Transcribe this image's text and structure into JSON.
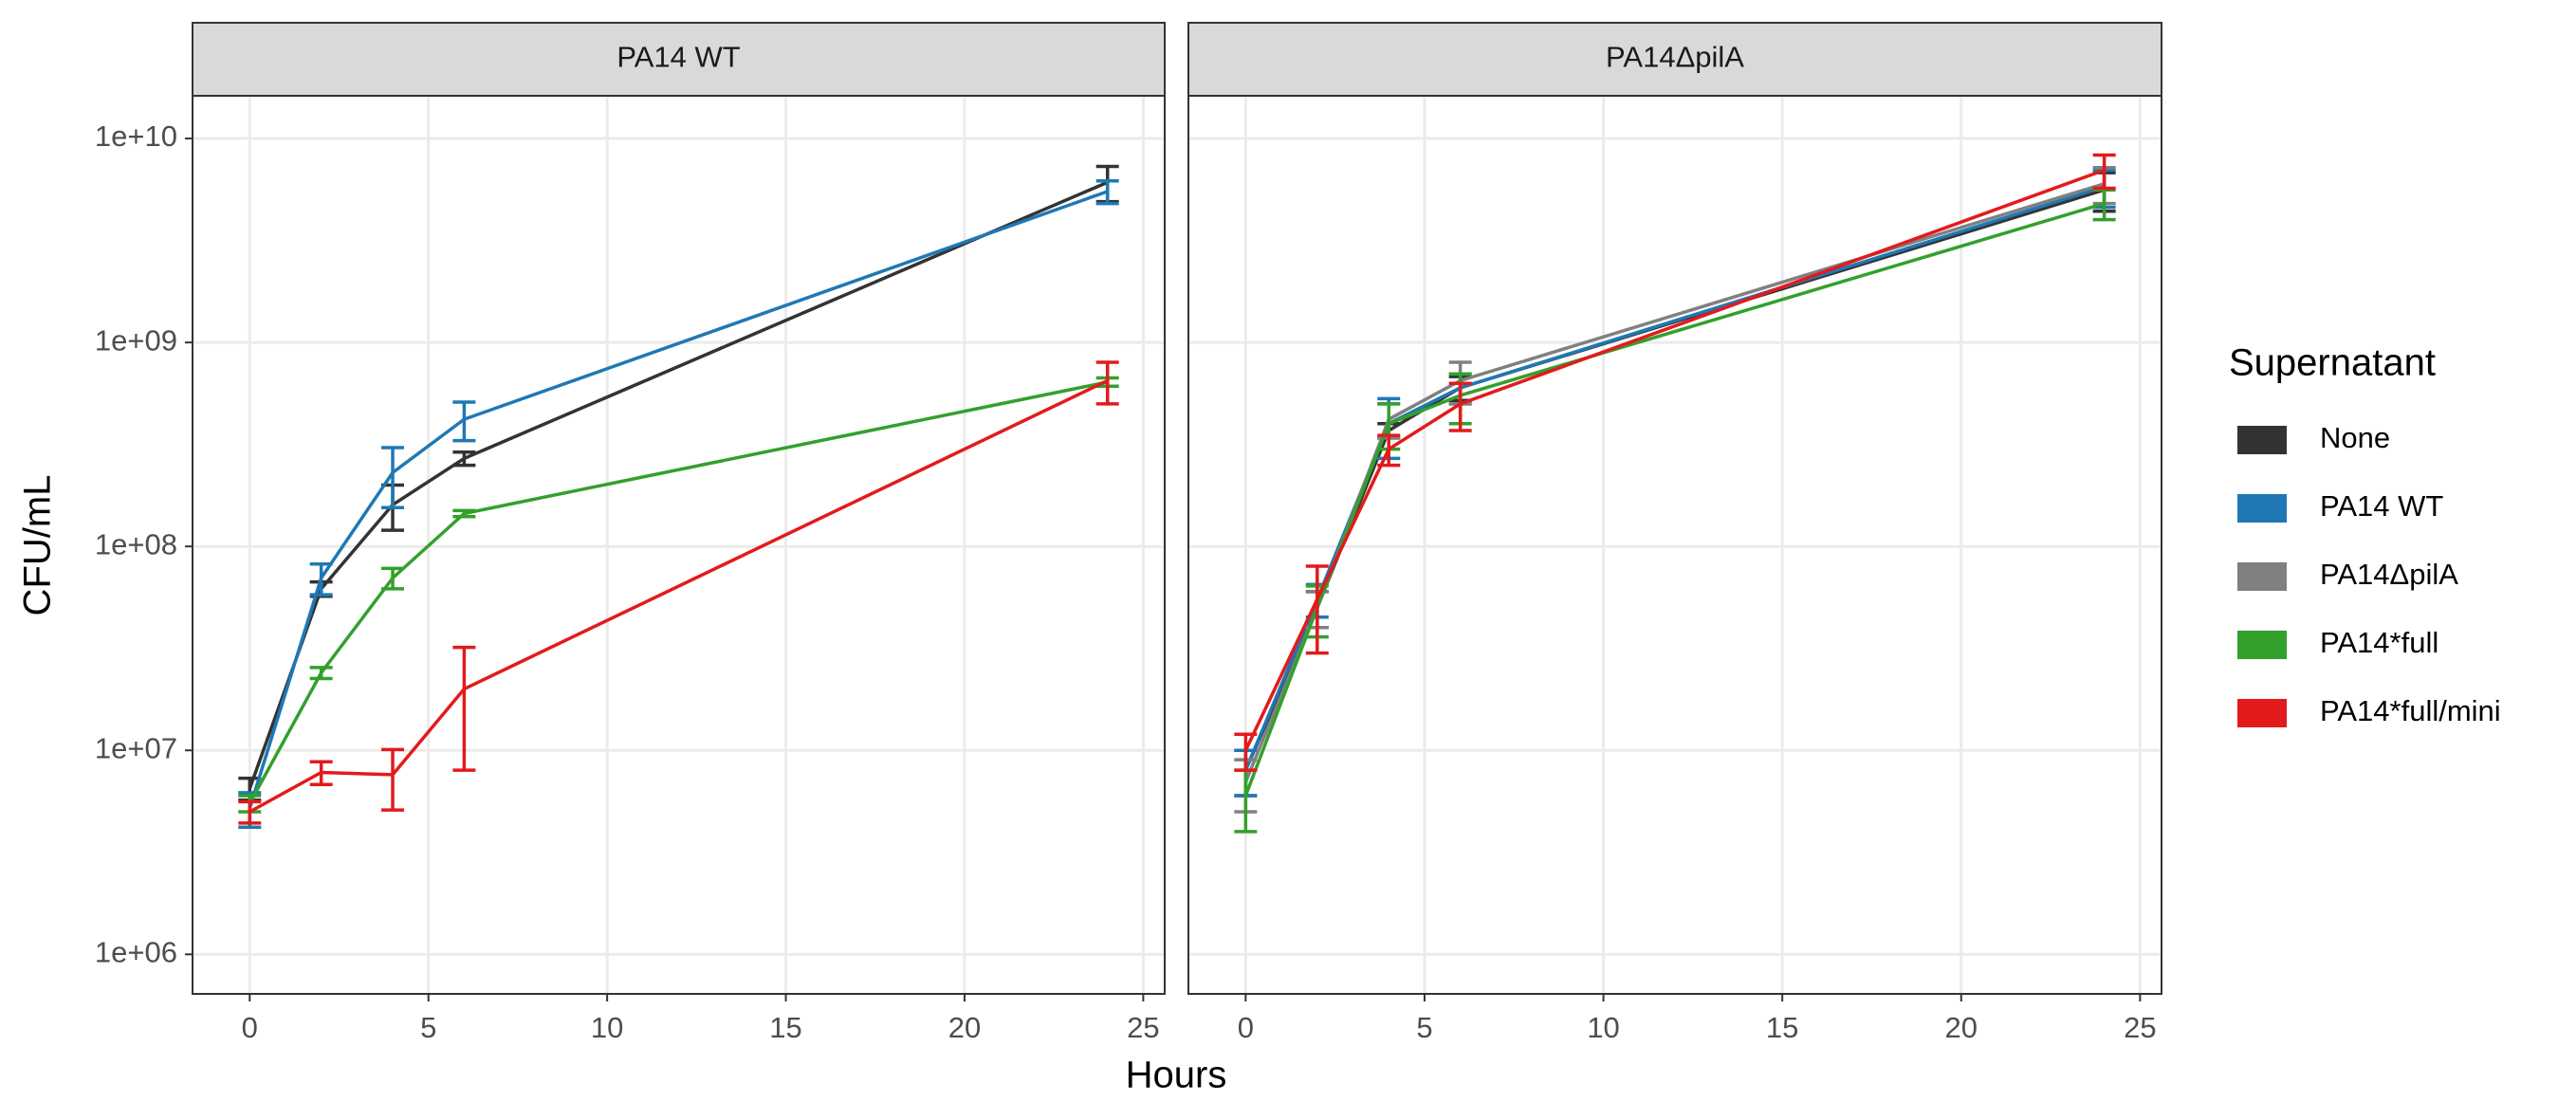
{
  "chart_data": [
    {
      "type": "line",
      "title": "PA14 WT",
      "x": [
        0,
        2,
        4,
        6,
        24
      ],
      "xlim": [
        -1.6,
        25.6
      ],
      "xticks": [
        0,
        5,
        10,
        15,
        20,
        25
      ],
      "ylim": [
        640000,
        16200000000
      ],
      "log_y": true,
      "grid": true,
      "yticks": [
        {
          "value": 1000000,
          "label": "1e+06"
        },
        {
          "value": 10000000,
          "label": "1e+07"
        },
        {
          "value": 100000000,
          "label": "1e+08"
        },
        {
          "value": 1000000000,
          "label": "1e+09"
        },
        {
          "value": 10000000000,
          "label": "1e+10"
        }
      ],
      "series": [
        {
          "name": "None",
          "color": "#333333",
          "values": [
            6500000,
            62000000,
            160000000,
            270000000,
            6100000000
          ],
          "errors": [
            800000,
            5000000,
            40000000,
            20000000,
            1200000000
          ]
        },
        {
          "name": "PA14 WT",
          "color": "#1f78b4",
          "values": [
            5200000,
            70000000,
            230000000,
            420000000,
            5500000000
          ],
          "errors": [
            1000000,
            12000000,
            75000000,
            90000000,
            700000000
          ]
        },
        {
          "name": "PA14ΔpilA",
          "color": "#808080",
          "values": [
            null,
            null,
            null,
            null,
            null
          ],
          "errors": [
            null,
            null,
            null,
            null,
            null
          ]
        },
        {
          "name": "PA14*full",
          "color": "#33a02c",
          "values": [
            5500000,
            24000000,
            70000000,
            145000000,
            640000000
          ],
          "errors": [
            500000,
            1500000,
            8000000,
            5000000,
            30000000
          ]
        },
        {
          "name": "PA14*full/mini",
          "color": "#e31a1c",
          "values": [
            5000000,
            7800000,
            7600000,
            20000000,
            650000000
          ],
          "errors": [
            600000,
            1000000,
            2500000,
            12000000,
            150000000
          ]
        }
      ]
    },
    {
      "type": "line",
      "title": "PA14ΔpilA",
      "x": [
        0,
        2,
        4,
        6,
        24
      ],
      "xlim": [
        -1.6,
        25.6
      ],
      "xticks": [
        0,
        5,
        10,
        15,
        20,
        25
      ],
      "ylim": [
        640000,
        16200000000
      ],
      "log_y": true,
      "grid": true,
      "series": [
        {
          "name": "None",
          "color": "#333333",
          "values": [
            8000000,
            50000000,
            370000000,
            600000000,
            5600000000
          ],
          "errors": [
            2000000,
            10000000,
            30000000,
            80000000,
            1200000000
          ]
        },
        {
          "name": "PA14 WT",
          "color": "#1f78b4",
          "values": [
            8000000,
            55000000,
            400000000,
            600000000,
            5800000000
          ],
          "errors": [
            2000000,
            10000000,
            130000000,
            100000000,
            1200000000
          ]
        },
        {
          "name": "PA14ΔpilA",
          "color": "#808080",
          "values": [
            7000000,
            50000000,
            420000000,
            650000000,
            6000000000
          ],
          "errors": [
            2000000,
            10000000,
            80000000,
            150000000,
            1200000000
          ]
        },
        {
          "name": "PA14*full",
          "color": "#33a02c",
          "values": [
            6000000,
            50000000,
            400000000,
            550000000,
            4800000000
          ],
          "errors": [
            2000000,
            14000000,
            100000000,
            150000000,
            800000000
          ]
        },
        {
          "name": "PA14*full/mini",
          "color": "#e31a1c",
          "values": [
            10000000,
            55000000,
            300000000,
            500000000,
            7000000000
          ],
          "errors": [
            2000000,
            25000000,
            50000000,
            130000000,
            1300000000
          ]
        }
      ]
    }
  ],
  "x_label": "Hours",
  "y_label": "CFU/mL",
  "legend": {
    "title": "Supernatant",
    "position": "right"
  }
}
